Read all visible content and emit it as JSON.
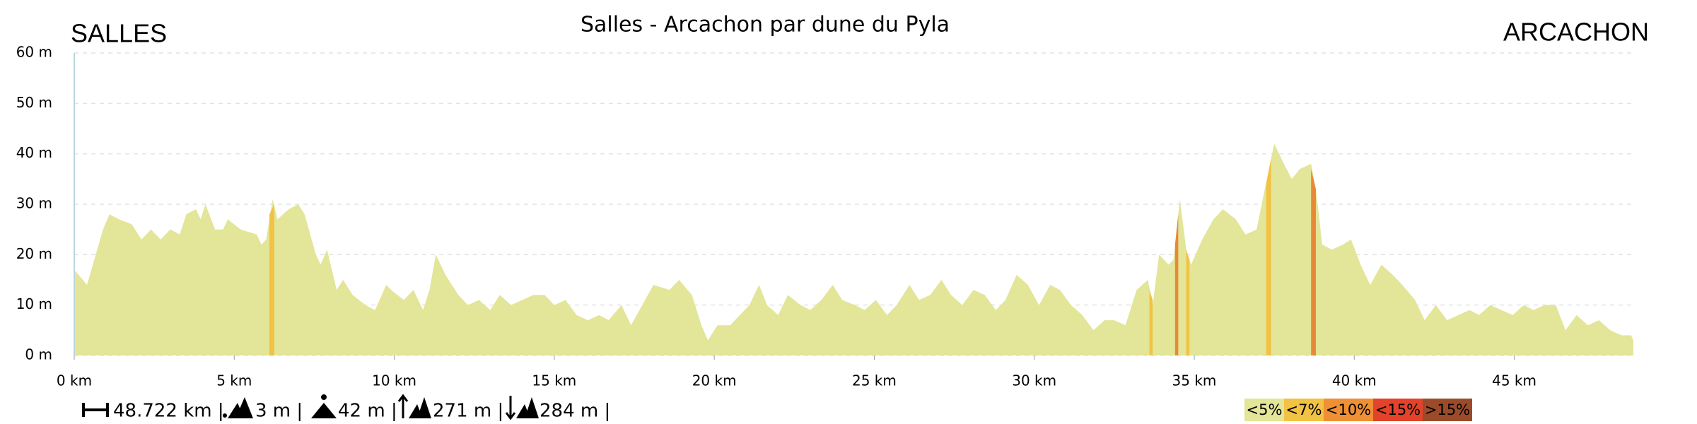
{
  "chart_data": {
    "type": "area",
    "title": "Salles - Arcachon par dune du Pyla",
    "start_label": "SALLES",
    "end_label": "ARCACHON",
    "color": "#e3e598",
    "x": [
      0,
      0.4,
      0.9,
      1.1,
      1.4,
      1.8,
      2.1,
      2.4,
      2.7,
      3.0,
      3.3,
      3.5,
      3.8,
      3.95,
      4.1,
      4.4,
      4.65,
      4.8,
      5.2,
      5.7,
      5.85,
      6.0,
      6.2,
      6.35,
      6.7,
      7.0,
      7.2,
      7.55,
      7.7,
      7.9,
      8.2,
      8.4,
      8.7,
      9.1,
      9.4,
      9.75,
      9.9,
      10.3,
      10.6,
      10.9,
      11.1,
      11.3,
      11.6,
      12.0,
      12.3,
      12.65,
      13.0,
      13.3,
      13.65,
      14.0,
      14.35,
      14.7,
      15.0,
      15.35,
      15.7,
      16.05,
      16.4,
      16.7,
      17.1,
      17.4,
      17.75,
      18.1,
      18.6,
      18.9,
      19.3,
      19.6,
      19.8,
      20.1,
      20.5,
      20.8,
      21.1,
      21.4,
      21.65,
      22.0,
      22.3,
      22.7,
      23.0,
      23.35,
      23.7,
      24.0,
      24.4,
      24.7,
      25.05,
      25.4,
      25.7,
      26.1,
      26.4,
      26.75,
      27.1,
      27.4,
      27.75,
      28.1,
      28.45,
      28.8,
      29.1,
      29.45,
      29.8,
      30.15,
      30.5,
      30.8,
      31.15,
      31.5,
      31.85,
      32.2,
      32.5,
      32.85,
      33.2,
      33.55,
      33.7,
      33.9,
      34.2,
      34.35,
      34.55,
      34.75,
      34.9,
      35.25,
      35.6,
      35.9,
      36.3,
      36.6,
      36.95,
      37.3,
      37.5,
      37.8,
      38.05,
      38.3,
      38.65,
      38.8,
      39.0,
      39.3,
      39.65,
      39.9,
      40.2,
      40.5,
      40.85,
      41.2,
      41.5,
      41.9,
      42.2,
      42.55,
      42.9,
      43.25,
      43.6,
      43.9,
      44.25,
      44.6,
      44.95,
      45.3,
      45.6,
      45.95,
      46.3,
      46.6,
      46.95,
      47.3,
      47.65,
      48.0,
      48.35,
      48.65,
      48.722
    ],
    "values": [
      17,
      14,
      25,
      28,
      27,
      26,
      23,
      25,
      23,
      25,
      24,
      28,
      29,
      27,
      30,
      25,
      25,
      27,
      25,
      24,
      22,
      23,
      31,
      27,
      29,
      30,
      28,
      20,
      18,
      21,
      13,
      15,
      12,
      10,
      9,
      14,
      13,
      11,
      13,
      9,
      13,
      20,
      16,
      12,
      10,
      11,
      9,
      12,
      10,
      11,
      12,
      12,
      10,
      11,
      8,
      7,
      8,
      7,
      10,
      6,
      10,
      14,
      13,
      15,
      12,
      6,
      3,
      6,
      6,
      8,
      10,
      14,
      10,
      8,
      12,
      10,
      9,
      11,
      14,
      11,
      10,
      9,
      11,
      8,
      10,
      14,
      11,
      12,
      15,
      12,
      10,
      13,
      12,
      9,
      11,
      16,
      14,
      10,
      14,
      13,
      10,
      8,
      5,
      7,
      7,
      6,
      13,
      15,
      10,
      20,
      18,
      19,
      31,
      21,
      18,
      23,
      27,
      29,
      27,
      24,
      25,
      36,
      42,
      38,
      35,
      37,
      38,
      33,
      22,
      21,
      22,
      23,
      18,
      14,
      18,
      16,
      14,
      11,
      7,
      10,
      7,
      8,
      9,
      8,
      10,
      9,
      8,
      10,
      9,
      10,
      10,
      5,
      8,
      6,
      7,
      5,
      4,
      4,
      3
    ],
    "slope_sections": [
      {
        "x": [
          6.1,
          6.25
        ],
        "values": [
          28,
          30
        ],
        "color": "#f2c244"
      },
      {
        "x": [
          33.6,
          33.7
        ],
        "values": [
          13,
          11
        ],
        "color": "#f2c244"
      },
      {
        "x": [
          34.4,
          34.5
        ],
        "values": [
          22,
          28
        ],
        "color": "#e8893a"
      },
      {
        "x": [
          34.75,
          34.85
        ],
        "values": [
          21,
          19
        ],
        "color": "#f2c244"
      },
      {
        "x": [
          37.25,
          37.4
        ],
        "values": [
          34,
          39
        ],
        "color": "#f2c244"
      },
      {
        "x": [
          38.65,
          38.8
        ],
        "values": [
          37,
          33
        ],
        "color": "#e8893a"
      }
    ],
    "xlim": [
      0,
      48.722
    ],
    "ylim": [
      0,
      60
    ],
    "xticks": [
      {
        "value": 0,
        "label": "0 km"
      },
      {
        "value": 5,
        "label": "5 km"
      },
      {
        "value": 10,
        "label": "10 km"
      },
      {
        "value": 15,
        "label": "15 km"
      },
      {
        "value": 20,
        "label": "20 km"
      },
      {
        "value": 25,
        "label": "25 km"
      },
      {
        "value": 30,
        "label": "30 km"
      },
      {
        "value": 35,
        "label": "35 km"
      },
      {
        "value": 40,
        "label": "40 km"
      },
      {
        "value": 45,
        "label": "45 km"
      }
    ],
    "yticks": [
      {
        "value": 0,
        "label": "0 m"
      },
      {
        "value": 10,
        "label": "10 m"
      },
      {
        "value": 20,
        "label": "20 m"
      },
      {
        "value": 30,
        "label": "30 m"
      },
      {
        "value": 40,
        "label": "40 m"
      },
      {
        "value": 50,
        "label": "50 m"
      },
      {
        "value": 60,
        "label": "60 m"
      }
    ],
    "grid": true,
    "stats": [
      "48.722 km |",
      "3 m |",
      "42 m |",
      "271 m |",
      "284 m |"
    ],
    "legend": [
      {
        "label": "<5%",
        "color": "#e3e598"
      },
      {
        "label": "<7%",
        "color": "#f2c244"
      },
      {
        "label": "<10%",
        "color": "#ef9035"
      },
      {
        "label": "<15%",
        "color": "#e2432a"
      },
      {
        "label": ">15%",
        "color": "#9c4b2a"
      }
    ]
  }
}
